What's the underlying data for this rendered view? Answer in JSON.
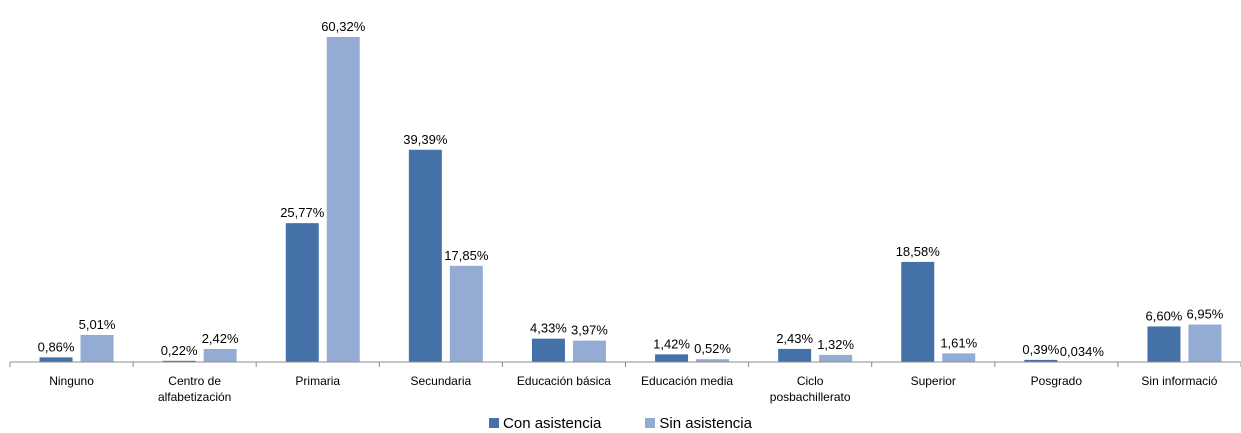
{
  "chart_data": {
    "type": "bar",
    "categories": [
      [
        "Ninguno"
      ],
      [
        "Centro de",
        "alfabetización"
      ],
      [
        "Primaria"
      ],
      [
        "Secundaria"
      ],
      [
        "Educación básica"
      ],
      [
        "Educación media"
      ],
      [
        "Ciclo",
        "posbachillerato"
      ],
      [
        "Superior"
      ],
      [
        "Posgrado"
      ],
      [
        "Sin informació"
      ]
    ],
    "series": [
      {
        "name": "Con asistencia",
        "color": "#4472A8",
        "values": [
          0.86,
          0.22,
          25.77,
          39.39,
          4.33,
          1.42,
          2.43,
          18.58,
          0.39,
          6.6
        ],
        "labels": [
          "0,86%",
          "0,22%",
          "25,77%",
          "39,39%",
          "4,33%",
          "1,42%",
          "2,43%",
          "18,58%",
          "0,39%",
          "6,60%"
        ]
      },
      {
        "name": "Sin asistencia",
        "color": "#94ABD3",
        "values": [
          5.01,
          2.42,
          60.32,
          17.85,
          3.97,
          0.52,
          1.32,
          1.61,
          0.034,
          6.95
        ],
        "labels": [
          "5,01%",
          "2,42%",
          "60,32%",
          "17,85%",
          "3,97%",
          "0,52%",
          "1,32%",
          "1,61%",
          "0,034%",
          "6,95%"
        ]
      }
    ],
    "title": "",
    "xlabel": "",
    "ylabel": "",
    "ylim": [
      0,
      60.32
    ],
    "grid": false,
    "legend_position": "bottom"
  }
}
